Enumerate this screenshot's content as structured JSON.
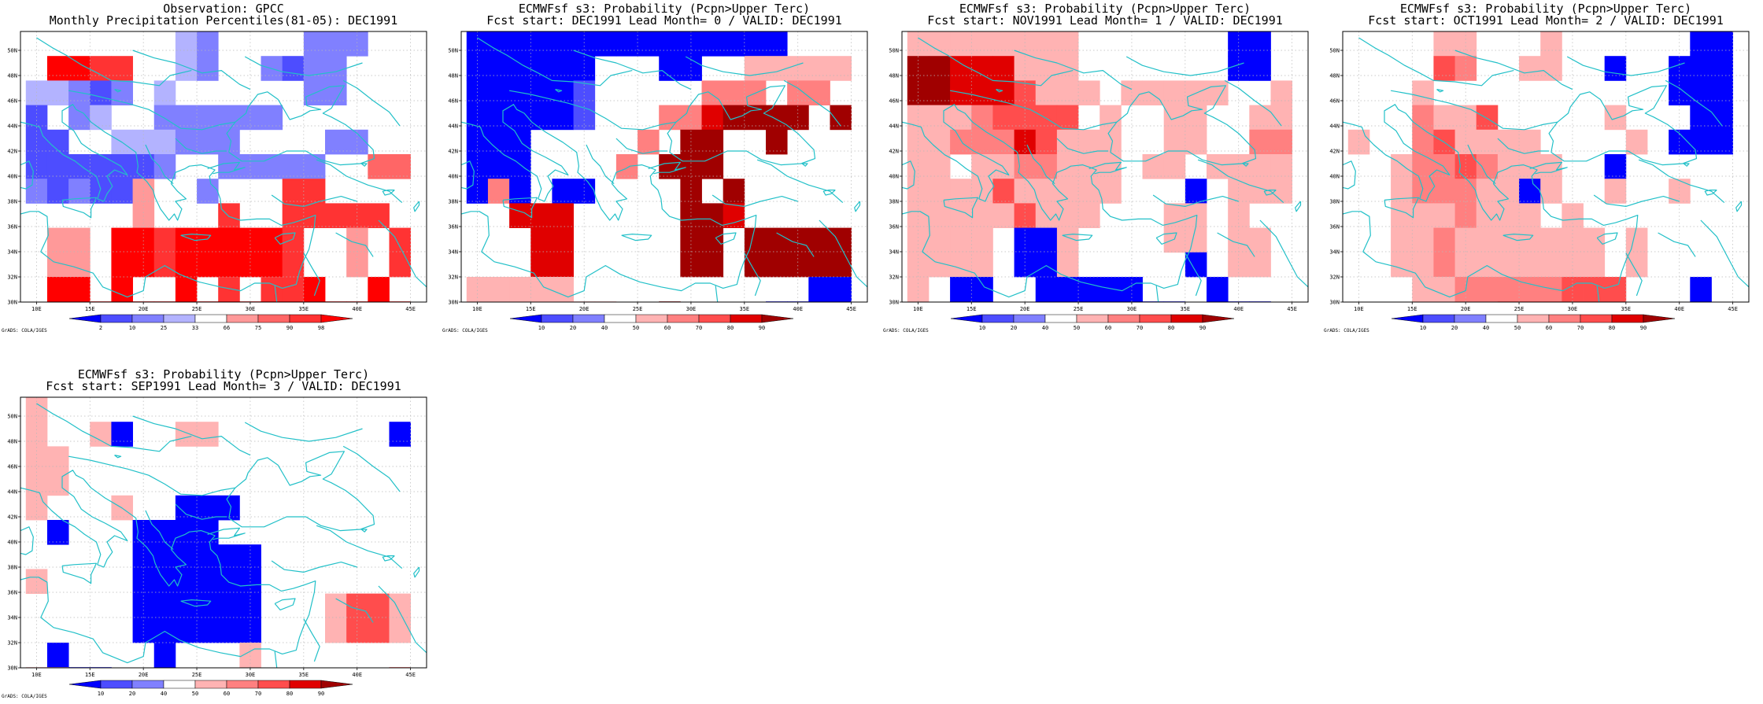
{
  "panels": [
    {
      "title1": "Observation: GPCC",
      "title2": "Monthly Precipitation Percentiles(81-05): DEC1991",
      "colorbar_labels": [
        "2",
        "10",
        "25",
        "33",
        "66",
        "75",
        "90",
        "98"
      ],
      "colorbar_colors": [
        "#0000ff",
        "#4d4dff",
        "#8080ff",
        "#b3b3ff",
        "#ffffff",
        "#ff9999",
        "#ff6666",
        "#ff3333",
        "#ff0000"
      ],
      "credit": "GrADS: COLA/IGES",
      "grid": [
        "WWWWW4W32WWWW222WW",
        "W8877WW32WW2122WWW",
        "33212W3WWWWWW22WWW",
        "1W23WW222222WWWWWW",
        "11WW333222WWWW22WW",
        "1111112WW22222WW66",
        "212115WW2WWW77WWWW",
        "WWWWW5WWW7WW77777W",
        "W55W887888887WW5W7",
        "W55W887888887WW5W7",
        "W88W8WW8W7W778WW8W",
        "W88888888888888888"
      ]
    },
    {
      "title1": "ECMWFsf s3: Probability (Pcpn>Upper Terc)",
      "title2": "Fcst start: DEC1991  Lead Month= 0 / VALID: DEC1991",
      "colorbar_labels": [
        "10",
        "20",
        "40",
        "50",
        "60",
        "70",
        "80",
        "90"
      ],
      "colorbar_colors": [
        "#0000ff",
        "#4d4dff",
        "#8080ff",
        "#ffffff",
        "#ffb3b3",
        "#ff8080",
        "#ff4d4d",
        "#e00000",
        "#a00000"
      ],
      "credit": "GrADS: COLA/IGES",
      "grid": [
        "000000000000000WWW",
        "000000WWW00WW44444",
        "000001WWWWW555W55W",
        "000001WWW5578888W8",
        "000WWWWW5W8899899W",
        "000WWWW5W888W99999",
        "050W00WWWW8W899999",
        "99777WWWWW887W999W",
        "99977W3WWW88W88888",
        "99977W3WWW88W88888",
        "44444WWW3WW9999W00",
        "44WWW44WW8999900W0"
      ]
    },
    {
      "title1": "ECMWFsf s3: Probability (Pcpn>Upper Terc)",
      "title2": "Fcst start: NOV1991  Lead Month= 1 / VALID: DEC1991",
      "colorbar_labels": [
        "10",
        "20",
        "40",
        "50",
        "60",
        "70",
        "80",
        "90"
      ],
      "colorbar_colors": [
        "#0000ff",
        "#4d4dff",
        "#8080ff",
        "#ffffff",
        "#ffb3b3",
        "#ff8080",
        "#ff4d4d",
        "#e00000",
        "#a00000"
      ],
      "credit": "GrADS: COLA/IGES",
      "grid": [
        "44444444WWWWWWW00WW",
        "88777444WWWWWWW00W",
        "887776444W44444WW4",
        "44456666W4WW44WW44",
        "4455576444WW44WW55",
        "44W4455444W44W4444",
        "4444644444WWW0W444",
        "444446444WWW44W4W",
        "4444W004WWWW44W44",
        "4444W004WWWWW0W44",
        "4W00WW00000WWW0WWW",
        "WW00WW0000000WW00W"
      ]
    },
    {
      "title1": "ECMWFsf s3: Probability (Pcpn>Upper Terc)",
      "title2": "Fcst start: OCT1991  Lead Month= 2 / VALID: DEC1991",
      "colorbar_labels": [
        "10",
        "20",
        "40",
        "50",
        "60",
        "70",
        "80",
        "90"
      ],
      "colorbar_colors": [
        "#0000ff",
        "#4d4dff",
        "#8080ff",
        "#ffffff",
        "#ffb3b3",
        "#ff8080",
        "#ff4d4d",
        "#e00000",
        "#a00000"
      ],
      "credit": "GrADS: COLA/IGES",
      "grid": [
        "WWWW44WWW4WWWWWW00",
        "WWWW65WW44WW0WW000",
        "WWW4WWWWWWWWWWW000",
        "WWW5446WWWWW4WWW00",
        "4WW564444WWWW4W000",
        "WW45565444WW0WWWW",
        "WW45554404WW4WW4WW",
        "WW4445444W4WWWWWW",
        "WW4454444444W4WWWW",
        "WW4454444444W4WWWW",
        "WWW4455555666WWW0W",
        "WWWWWW5666666WWWWW"
      ]
    },
    {
      "title1": "ECMWFsf s3: Probability (Pcpn>Upper Terc)",
      "title2": "Fcst start: SEP1991  Lead Month= 3 / VALID: DEC1991",
      "colorbar_labels": [
        "10",
        "20",
        "40",
        "50",
        "60",
        "70",
        "80",
        "90"
      ],
      "colorbar_colors": [
        "#0000ff",
        "#4d4dff",
        "#8080ff",
        "#ffffff",
        "#ffb3b3",
        "#ff8080",
        "#ff4d4d",
        "#e00000",
        "#a00000"
      ],
      "credit": "GrADS: COLA/IGES",
      "grid": [
        "4WWWWWWWWWWWWWWWWWW",
        "4WW40WW44WWWWWWWW0",
        "44WWWWWWWWWWWWWWWW",
        "44WWWWWWWWWWWWWWWW",
        "4WWW4WW000WWWWWWWW",
        "W0WWW0000WWWWWWWWW",
        "WWWWW000000WWWWWWW",
        "4WWWW000000WWWWWWW",
        "WWWWW000000WWW4664",
        "WWWWW000000WWW4664",
        "W0WWWW0WWW4WWWWWWW",
        "4400WW0WWWWWWWWWW6"
      ]
    }
  ],
  "axes": {
    "x_ticks": [
      "10E",
      "15E",
      "20E",
      "25E",
      "30E",
      "35E",
      "40E",
      "45E"
    ],
    "y_ticks": [
      "30N",
      "32N",
      "34N",
      "36N",
      "38N",
      "40N",
      "42N",
      "44N",
      "46N",
      "48N",
      "50N"
    ]
  },
  "map_region": {
    "lon_range": [
      8.5,
      46.5
    ],
    "lat_range": [
      30,
      51.5
    ]
  }
}
